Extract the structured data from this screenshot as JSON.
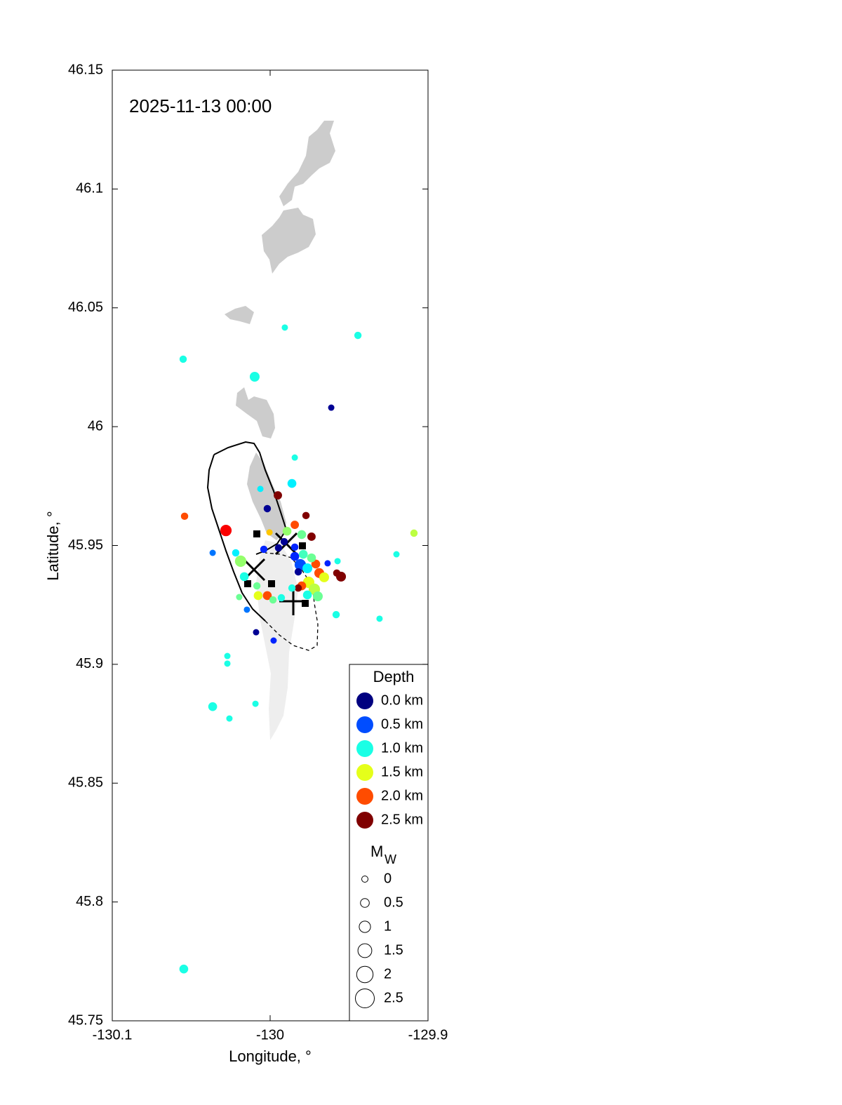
{
  "chart_data": {
    "type": "scatter",
    "annotation": "2025-11-13 00:00",
    "xlabel": "Longitude, °",
    "ylabel": "Latitude, °",
    "xlim": [
      -130.1,
      -129.9
    ],
    "ylim": [
      45.75,
      46.15
    ],
    "xticks": [
      -130.1,
      -130,
      -129.9
    ],
    "yticks": [
      45.75,
      45.8,
      45.85,
      45.9,
      45.95,
      46,
      46.05,
      46.1,
      46.15
    ],
    "colormap": "jet",
    "clim": [
      0,
      2.5
    ],
    "x": [
      -129.9907,
      -129.9444,
      -130.0551,
      -130.0098,
      -129.9613,
      -129.9844,
      -129.9862,
      -130.0062,
      -129.9951,
      -130.0018,
      -130.0542,
      -129.9773,
      -129.9844,
      -130.028,
      -129.9089,
      -129.9738,
      -130.0004,
      -129.9893,
      -129.98,
      -130.0364,
      -129.92,
      -130.0218,
      -130.0187,
      -130.004,
      -129.9947,
      -129.9844,
      -129.9809,
      -129.9764,
      -129.9711,
      -129.9738,
      -129.9636,
      -129.9573,
      -129.9578,
      -129.9551,
      -129.9689,
      -129.9658,
      -129.9756,
      -129.972,
      -129.98,
      -129.9822,
      -129.9764,
      -129.9698,
      -130.0164,
      -130.0084,
      -130.0076,
      -130.0018,
      -129.9982,
      -130.0196,
      -129.9929,
      -129.9862,
      -129.9582,
      -129.9307,
      -130.0147,
      -130.0089,
      -129.9978,
      -130.0271,
      -130.0271,
      -130.0364,
      -130.0093,
      -130.0258,
      -130.0547,
      -129.9911,
      -129.9844,
      -129.9822,
      -129.979
    ],
    "y": [
      46.0417,
      46.0384,
      46.0284,
      46.021,
      46.008,
      45.987,
      45.9761,
      45.9738,
      45.9711,
      45.9655,
      45.9623,
      45.9626,
      45.9587,
      45.9563,
      45.9552,
      45.9537,
      45.9555,
      45.956,
      45.9546,
      45.9469,
      45.9463,
      45.9469,
      45.9434,
      45.9484,
      45.949,
      45.9454,
      45.9419,
      45.9404,
      45.9422,
      45.9448,
      45.9425,
      45.9434,
      45.9384,
      45.9369,
      45.9384,
      45.9366,
      45.9345,
      45.9316,
      45.933,
      45.9321,
      45.9292,
      45.9286,
      45.9369,
      45.933,
      45.9289,
      45.9289,
      45.9271,
      45.9283,
      45.928,
      45.9321,
      45.9209,
      45.9192,
      45.923,
      45.9135,
      45.91,
      45.9035,
      45.9003,
      45.8822,
      45.8834,
      45.8772,
      45.7718,
      45.9516,
      45.9493,
      45.9389,
      45.9463
    ],
    "depth": [
      1.0,
      1.0,
      1.0,
      1.0,
      0.05,
      1.0,
      0.9,
      0.9,
      2.5,
      0.05,
      2.0,
      2.5,
      2.0,
      2.2,
      1.4,
      2.5,
      1.7,
      1.3,
      1.2,
      0.6,
      1.0,
      0.9,
      1.3,
      0.4,
      0.05,
      0.4,
      0.5,
      0.9,
      2.0,
      1.2,
      0.4,
      1.0,
      2.5,
      2.5,
      2.0,
      1.5,
      1.5,
      1.4,
      2.0,
      2.5,
      1.0,
      1.2,
      1.0,
      1.2,
      1.5,
      2.0,
      1.2,
      1.2,
      1.0,
      1.0,
      1.0,
      1.0,
      0.6,
      0.05,
      0.4,
      1.0,
      1.0,
      1.0,
      1.0,
      1.0,
      1.0,
      0.05,
      0.4,
      0.05,
      1.1
    ],
    "magnitude": [
      0,
      0.2,
      0.2,
      0.7,
      0,
      0,
      0.5,
      0,
      0.4,
      0.2,
      0.2,
      0.2,
      0.4,
      1.0,
      0.2,
      0.4,
      0,
      0.5,
      0.5,
      0,
      0,
      0.2,
      1.0,
      0.2,
      0.2,
      0.5,
      1.0,
      0.7,
      0.5,
      0.5,
      0,
      0,
      0.2,
      0.7,
      0.7,
      0.7,
      1.0,
      1.0,
      0.5,
      0.2,
      0.5,
      0.7,
      0.5,
      0.2,
      0.5,
      0.5,
      0.2,
      0,
      0.2,
      0.2,
      0.2,
      0,
      0,
      0,
      0,
      0,
      0,
      0.5,
      0,
      0,
      0.5,
      0.2,
      0.2,
      0.2,
      0.5
    ],
    "color_legend": {
      "title": "Depth",
      "values": [
        0,
        0.5,
        1,
        1.5,
        2,
        2.5
      ],
      "labels": [
        "0.0 km",
        "0.5 km",
        "1.0 km",
        "1.5 km",
        "2.0 km",
        "2.5 km"
      ]
    },
    "size_legend": {
      "title": "M",
      "title_subscript": "W",
      "values": [
        0,
        0.5,
        1,
        1.5,
        2,
        2.5
      ]
    }
  }
}
